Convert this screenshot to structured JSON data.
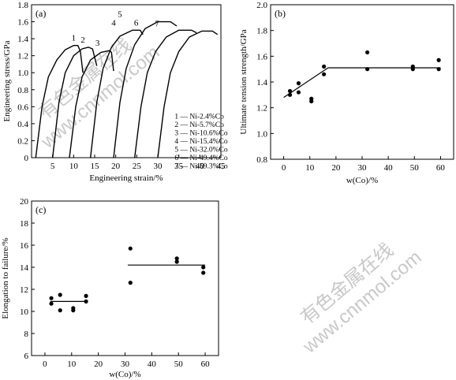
{
  "watermarks": [
    {
      "cn": "有色金属在线",
      "url": "www.cnnmol.com"
    },
    {
      "cn": "有色金属在线",
      "url": "www.cnnmol.com"
    }
  ],
  "chart_data": [
    {
      "panel_label": "(a)",
      "type": "line",
      "xlabel": "Engineering strain/%",
      "ylabel": "Engineering stress/GPa",
      "xlim": [
        0,
        45
      ],
      "ylim": [
        0,
        1.8
      ],
      "xticks": [
        0,
        5,
        10,
        15,
        20,
        25,
        30,
        35,
        40,
        45
      ],
      "yticks": [
        0,
        0.2,
        0.4,
        0.6,
        0.8,
        1.0,
        1.2,
        1.4,
        1.6,
        1.8
      ],
      "xtick_labels": [
        "",
        "5",
        "10",
        "15",
        "20",
        "25",
        "30",
        "35",
        "40",
        "45"
      ],
      "ytick_labels": [
        "",
        "0.2",
        "0.4",
        "0.6",
        "0.8",
        "1.0",
        "1.2",
        "1.4",
        "1.6",
        "1.8"
      ],
      "legend": [
        "1 — Ni-2.4%Co",
        "2 — Ni-5.7%Co",
        "3 — Ni-10.6%Co",
        "4 — Ni-15.4%Co",
        "5 — Ni-32.0%Co",
        "6 — Ni-49.4%Co",
        "7 — Ni-59.3%Co"
      ],
      "legend_position": "bottom-right",
      "series": [
        {
          "label": "1",
          "points": [
            [
              1.0,
              0
            ],
            [
              2.5,
              0.6
            ],
            [
              4.0,
              0.95
            ],
            [
              6.0,
              1.15
            ],
            [
              8.0,
              1.27
            ],
            [
              10.0,
              1.32
            ],
            [
              11.0,
              1.32
            ],
            [
              11.6,
              1.25
            ],
            [
              12.2,
              1.0
            ]
          ]
        },
        {
          "label": "2",
          "points": [
            [
              5.0,
              0
            ],
            [
              6.5,
              0.65
            ],
            [
              8.0,
              1.0
            ],
            [
              10.0,
              1.2
            ],
            [
              12.0,
              1.28
            ],
            [
              13.5,
              1.3
            ],
            [
              14.5,
              1.28
            ],
            [
              15.5,
              1.08
            ]
          ]
        },
        {
          "label": "3",
          "points": [
            [
              9.0,
              0
            ],
            [
              10.5,
              0.6
            ],
            [
              12.0,
              0.95
            ],
            [
              14.0,
              1.15
            ],
            [
              16.5,
              1.24
            ],
            [
              18.5,
              1.26
            ],
            [
              19.0,
              1.24
            ],
            [
              19.5,
              1.02
            ]
          ]
        },
        {
          "label": "4",
          "points": [
            [
              14.0,
              0
            ],
            [
              15.5,
              0.65
            ],
            [
              17.0,
              1.05
            ],
            [
              19.0,
              1.3
            ],
            [
              21.0,
              1.43
            ],
            [
              24.0,
              1.5
            ],
            [
              25.8,
              1.5
            ],
            [
              26.5,
              1.45
            ]
          ]
        },
        {
          "label": "5",
          "points": [
            [
              19.5,
              0
            ],
            [
              21.0,
              0.65
            ],
            [
              22.5,
              1.05
            ],
            [
              24.5,
              1.33
            ],
            [
              27.0,
              1.52
            ],
            [
              30.0,
              1.6
            ],
            [
              33.0,
              1.6
            ],
            [
              34.5,
              1.55
            ]
          ]
        },
        {
          "label": "6",
          "points": [
            [
              24.5,
              0
            ],
            [
              26.0,
              0.6
            ],
            [
              27.5,
              1.0
            ],
            [
              29.5,
              1.25
            ],
            [
              32.0,
              1.42
            ],
            [
              35.0,
              1.5
            ],
            [
              38.0,
              1.5
            ],
            [
              39.2,
              1.47
            ]
          ]
        },
        {
          "label": "7",
          "points": [
            [
              30.0,
              0
            ],
            [
              31.5,
              0.6
            ],
            [
              33.0,
              1.0
            ],
            [
              35.0,
              1.25
            ],
            [
              37.5,
              1.42
            ],
            [
              40.5,
              1.49
            ],
            [
              43.0,
              1.49
            ],
            [
              44.2,
              1.45
            ]
          ]
        }
      ]
    },
    {
      "panel_label": "(b)",
      "type": "scatter",
      "xlabel": "w(Co)/%",
      "ylabel": "Ultimate tension strength/GPa",
      "xlim": [
        -5,
        65
      ],
      "ylim": [
        0.8,
        2.0
      ],
      "xticks": [
        0,
        10,
        20,
        30,
        40,
        50,
        60
      ],
      "yticks": [
        0.8,
        1.0,
        1.2,
        1.4,
        1.6,
        1.8,
        2.0
      ],
      "ytick_labels": [
        "0.8",
        "1.0",
        "1.2",
        "1.4",
        "1.6",
        "1.8",
        "2.0"
      ],
      "points": [
        [
          2.4,
          1.33
        ],
        [
          2.4,
          1.3
        ],
        [
          5.7,
          1.39
        ],
        [
          5.7,
          1.32
        ],
        [
          10.6,
          1.27
        ],
        [
          10.6,
          1.25
        ],
        [
          15.4,
          1.52
        ],
        [
          15.4,
          1.46
        ],
        [
          32.0,
          1.63
        ],
        [
          32.0,
          1.5
        ],
        [
          49.4,
          1.52
        ],
        [
          49.4,
          1.5
        ],
        [
          59.3,
          1.57
        ],
        [
          59.3,
          1.5
        ]
      ],
      "fit_line": [
        [
          0.0,
          1.28
        ],
        [
          17.0,
          1.51
        ],
        [
          60.0,
          1.51
        ]
      ]
    },
    {
      "panel_label": "(c)",
      "type": "scatter",
      "xlabel": "w(Co)/%",
      "ylabel": "Elongation to failure/%",
      "xlim": [
        -5,
        65
      ],
      "ylim": [
        6,
        20
      ],
      "xticks": [
        0,
        10,
        20,
        30,
        40,
        50,
        60
      ],
      "yticks": [
        6,
        8,
        10,
        12,
        14,
        16,
        18,
        20
      ],
      "points": [
        [
          2.4,
          11.2
        ],
        [
          2.4,
          10.7
        ],
        [
          5.7,
          11.5
        ],
        [
          5.7,
          10.1
        ],
        [
          10.6,
          10.3
        ],
        [
          10.6,
          10.1
        ],
        [
          15.4,
          11.4
        ],
        [
          15.4,
          10.9
        ],
        [
          32.0,
          15.7
        ],
        [
          32.0,
          12.6
        ],
        [
          49.4,
          14.8
        ],
        [
          49.4,
          14.5
        ],
        [
          59.3,
          14.0
        ],
        [
          59.3,
          13.5
        ]
      ],
      "fit_lines": [
        [
          [
            2.0,
            10.9
          ],
          [
            16.0,
            10.9
          ]
        ],
        [
          [
            31.0,
            14.2
          ],
          [
            60.0,
            14.2
          ]
        ]
      ]
    }
  ]
}
